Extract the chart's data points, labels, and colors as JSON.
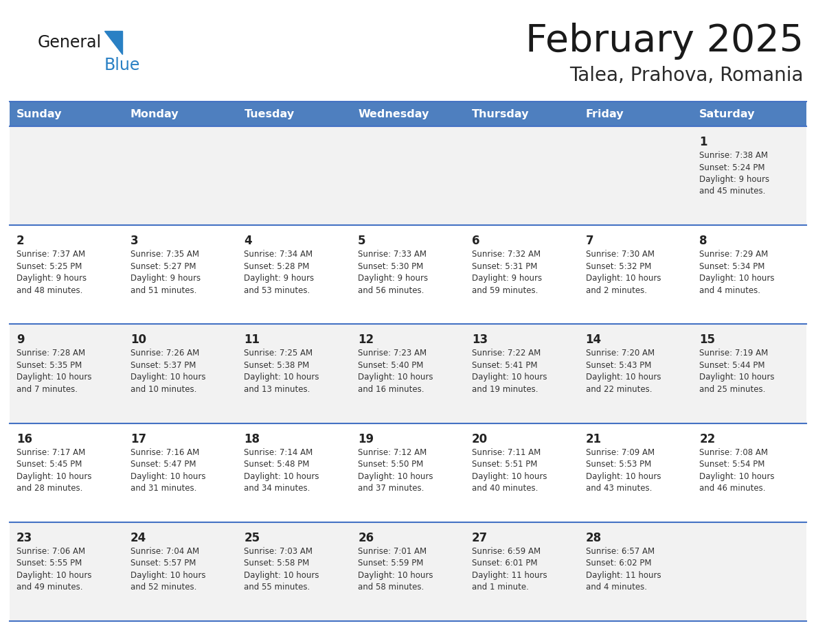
{
  "title": "February 2025",
  "subtitle": "Talea, Prahova, Romania",
  "days_of_week": [
    "Sunday",
    "Monday",
    "Tuesday",
    "Wednesday",
    "Thursday",
    "Friday",
    "Saturday"
  ],
  "header_bg": "#4E7FBF",
  "header_text": "#FFFFFF",
  "cell_bg_odd": "#F2F2F2",
  "cell_bg_even": "#FFFFFF",
  "border_color": "#4472C4",
  "day_number_color": "#222222",
  "info_text_color": "#333333",
  "title_color": "#1a1a1a",
  "subtitle_color": "#2a2a2a",
  "logo_general_color": "#1a1a1a",
  "logo_blue_color": "#2980C4",
  "weeks": [
    [
      {
        "day": null,
        "info": null
      },
      {
        "day": null,
        "info": null
      },
      {
        "day": null,
        "info": null
      },
      {
        "day": null,
        "info": null
      },
      {
        "day": null,
        "info": null
      },
      {
        "day": null,
        "info": null
      },
      {
        "day": 1,
        "info": "Sunrise: 7:38 AM\nSunset: 5:24 PM\nDaylight: 9 hours\nand 45 minutes."
      }
    ],
    [
      {
        "day": 2,
        "info": "Sunrise: 7:37 AM\nSunset: 5:25 PM\nDaylight: 9 hours\nand 48 minutes."
      },
      {
        "day": 3,
        "info": "Sunrise: 7:35 AM\nSunset: 5:27 PM\nDaylight: 9 hours\nand 51 minutes."
      },
      {
        "day": 4,
        "info": "Sunrise: 7:34 AM\nSunset: 5:28 PM\nDaylight: 9 hours\nand 53 minutes."
      },
      {
        "day": 5,
        "info": "Sunrise: 7:33 AM\nSunset: 5:30 PM\nDaylight: 9 hours\nand 56 minutes."
      },
      {
        "day": 6,
        "info": "Sunrise: 7:32 AM\nSunset: 5:31 PM\nDaylight: 9 hours\nand 59 minutes."
      },
      {
        "day": 7,
        "info": "Sunrise: 7:30 AM\nSunset: 5:32 PM\nDaylight: 10 hours\nand 2 minutes."
      },
      {
        "day": 8,
        "info": "Sunrise: 7:29 AM\nSunset: 5:34 PM\nDaylight: 10 hours\nand 4 minutes."
      }
    ],
    [
      {
        "day": 9,
        "info": "Sunrise: 7:28 AM\nSunset: 5:35 PM\nDaylight: 10 hours\nand 7 minutes."
      },
      {
        "day": 10,
        "info": "Sunrise: 7:26 AM\nSunset: 5:37 PM\nDaylight: 10 hours\nand 10 minutes."
      },
      {
        "day": 11,
        "info": "Sunrise: 7:25 AM\nSunset: 5:38 PM\nDaylight: 10 hours\nand 13 minutes."
      },
      {
        "day": 12,
        "info": "Sunrise: 7:23 AM\nSunset: 5:40 PM\nDaylight: 10 hours\nand 16 minutes."
      },
      {
        "day": 13,
        "info": "Sunrise: 7:22 AM\nSunset: 5:41 PM\nDaylight: 10 hours\nand 19 minutes."
      },
      {
        "day": 14,
        "info": "Sunrise: 7:20 AM\nSunset: 5:43 PM\nDaylight: 10 hours\nand 22 minutes."
      },
      {
        "day": 15,
        "info": "Sunrise: 7:19 AM\nSunset: 5:44 PM\nDaylight: 10 hours\nand 25 minutes."
      }
    ],
    [
      {
        "day": 16,
        "info": "Sunrise: 7:17 AM\nSunset: 5:45 PM\nDaylight: 10 hours\nand 28 minutes."
      },
      {
        "day": 17,
        "info": "Sunrise: 7:16 AM\nSunset: 5:47 PM\nDaylight: 10 hours\nand 31 minutes."
      },
      {
        "day": 18,
        "info": "Sunrise: 7:14 AM\nSunset: 5:48 PM\nDaylight: 10 hours\nand 34 minutes."
      },
      {
        "day": 19,
        "info": "Sunrise: 7:12 AM\nSunset: 5:50 PM\nDaylight: 10 hours\nand 37 minutes."
      },
      {
        "day": 20,
        "info": "Sunrise: 7:11 AM\nSunset: 5:51 PM\nDaylight: 10 hours\nand 40 minutes."
      },
      {
        "day": 21,
        "info": "Sunrise: 7:09 AM\nSunset: 5:53 PM\nDaylight: 10 hours\nand 43 minutes."
      },
      {
        "day": 22,
        "info": "Sunrise: 7:08 AM\nSunset: 5:54 PM\nDaylight: 10 hours\nand 46 minutes."
      }
    ],
    [
      {
        "day": 23,
        "info": "Sunrise: 7:06 AM\nSunset: 5:55 PM\nDaylight: 10 hours\nand 49 minutes."
      },
      {
        "day": 24,
        "info": "Sunrise: 7:04 AM\nSunset: 5:57 PM\nDaylight: 10 hours\nand 52 minutes."
      },
      {
        "day": 25,
        "info": "Sunrise: 7:03 AM\nSunset: 5:58 PM\nDaylight: 10 hours\nand 55 minutes."
      },
      {
        "day": 26,
        "info": "Sunrise: 7:01 AM\nSunset: 5:59 PM\nDaylight: 10 hours\nand 58 minutes."
      },
      {
        "day": 27,
        "info": "Sunrise: 6:59 AM\nSunset: 6:01 PM\nDaylight: 11 hours\nand 1 minute."
      },
      {
        "day": 28,
        "info": "Sunrise: 6:57 AM\nSunset: 6:02 PM\nDaylight: 11 hours\nand 4 minutes."
      },
      {
        "day": null,
        "info": null
      }
    ]
  ]
}
